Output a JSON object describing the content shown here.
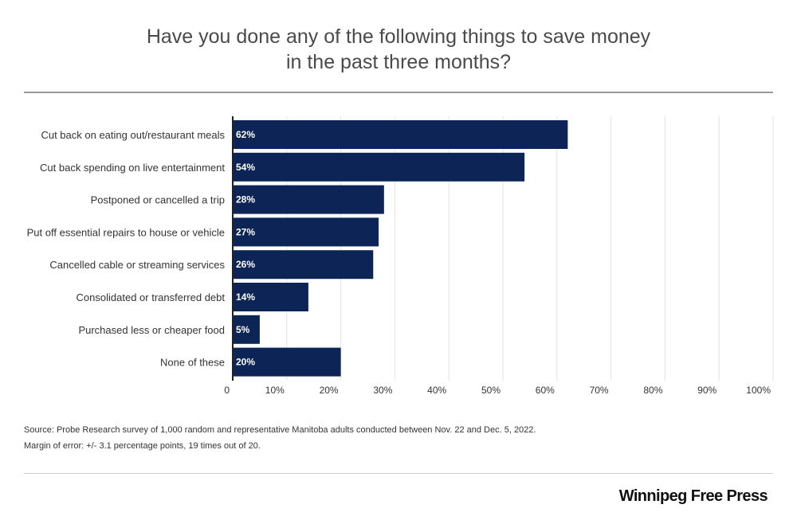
{
  "title": {
    "line1": "Have you done any of the following things to save money",
    "line2": "in the past three months?"
  },
  "chart_data": {
    "type": "bar",
    "orientation": "horizontal",
    "categories": [
      "Cut back on eating out/restaurant meals",
      "Cut back spending on live entertainment",
      "Postponed or cancelled a trip",
      "Put off essential repairs to house or vehicle",
      "Cancelled cable or streaming services",
      "Consolidated or transferred debt",
      "Purchased less or cheaper food",
      "None of these"
    ],
    "values": [
      62,
      54,
      28,
      27,
      26,
      14,
      5,
      20
    ],
    "data_labels": [
      "62%",
      "54%",
      "28%",
      "27%",
      "26%",
      "14%",
      "5%",
      "20%"
    ],
    "xlim": [
      0,
      100
    ],
    "ticks": [
      0,
      10,
      20,
      30,
      40,
      50,
      60,
      70,
      80,
      90,
      100
    ],
    "tick_labels": [
      "0",
      "10%",
      "20%",
      "30%",
      "40%",
      "50%",
      "60%",
      "70%",
      "80%",
      "90%",
      "100%"
    ],
    "grid": true,
    "legend": "none",
    "bar_color": "#0d2556",
    "grid_color": "#e2e2e2",
    "axis_color": "#222222"
  },
  "footnote": {
    "source": "Source: Probe Research survey of 1,000 random and representative Manitoba adults conducted between Nov. 22 and Dec. 5, 2022.",
    "margin": "Margin of error: +/- 3.1 percentage points, 19 times out of 20."
  },
  "brand": "Winnipeg Free Press"
}
